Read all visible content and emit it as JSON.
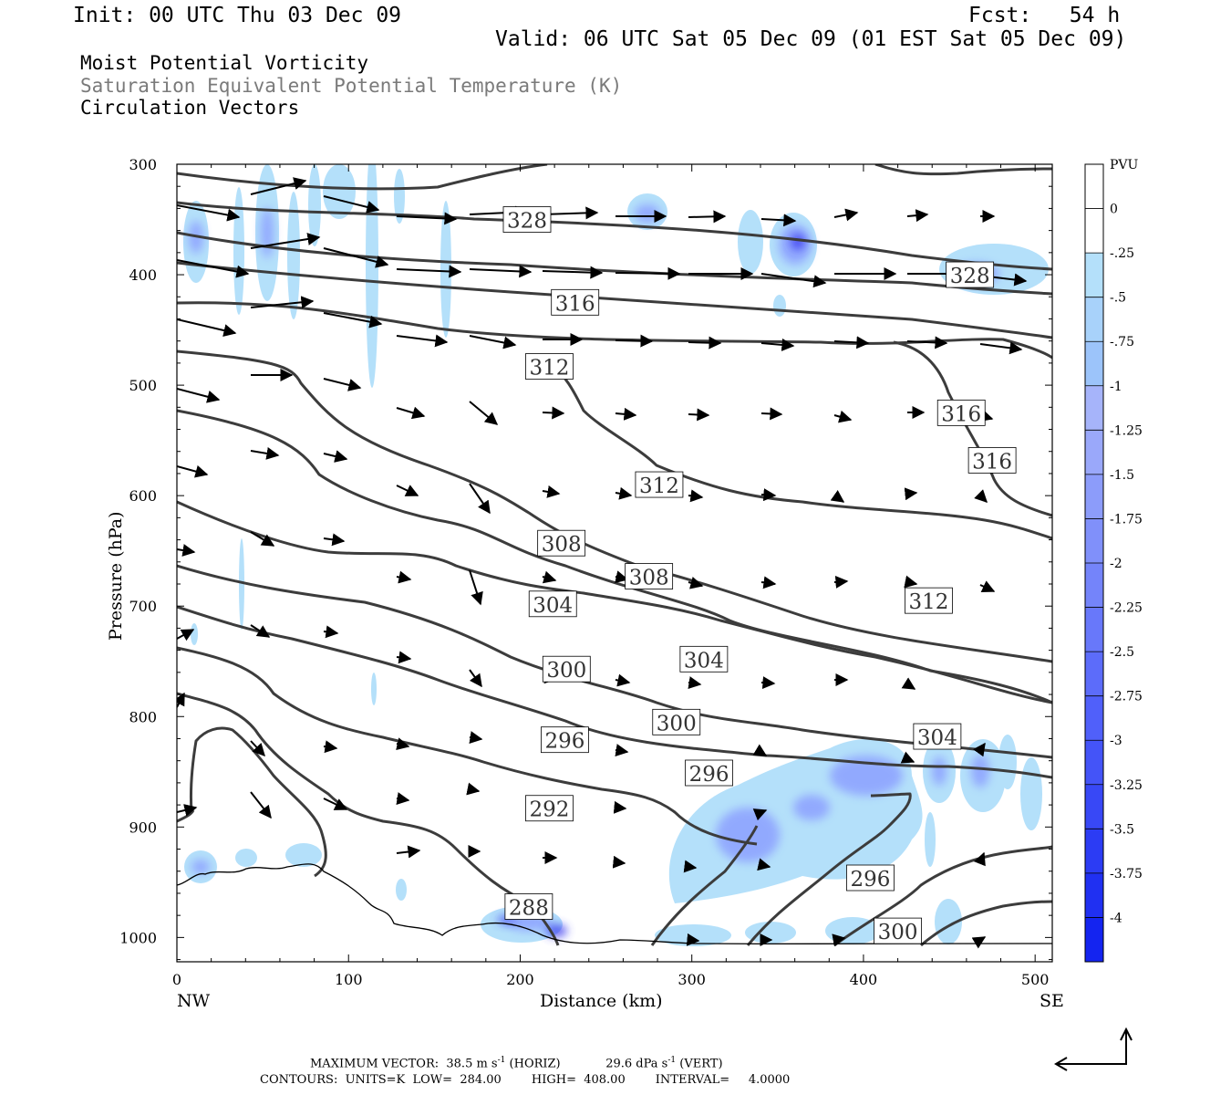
{
  "header": {
    "init": "Init: 00 UTC Thu 03 Dec 09",
    "fcst": "Fcst:   54 h",
    "valid": "Valid: 06 UTC Sat 05 Dec 09 (01 EST Sat 05 Dec 09)",
    "fields": [
      "Moist Potential Vorticity",
      "Saturation Equivalent Potential Temperature (K)",
      "Circulation Vectors"
    ]
  },
  "footer": {
    "max_vector_label": "MAXIMUM VECTOR:",
    "horiz": "38.5 m s",
    "horiz_unit": "(HORIZ)",
    "vert": "29.6 dPa s",
    "vert_unit": "(VERT)",
    "exp": "-1",
    "contours": "CONTOURS:  UNITS=K  LOW=  284.00        HIGH=  408.00        INTERVAL=     4.0000"
  },
  "colors": {
    "contour": "#3c3c3c",
    "pv_light": "#b4e0fa",
    "pv_mid": "#8ca0ff",
    "pv_dark": "#2828f0"
  },
  "chart_data": {
    "type": "contour",
    "xlabel": "Distance (km)",
    "ylabel": "Pressure (hPa)",
    "xlim": [
      0,
      510
    ],
    "ylim": [
      1022,
      300
    ],
    "x_ticks": [
      "0",
      "100",
      "200",
      "300",
      "400",
      "500"
    ],
    "x_tick_values": [
      0,
      100,
      200,
      300,
      400,
      500
    ],
    "y_ticks": [
      "300",
      "400",
      "500",
      "600",
      "700",
      "800",
      "900",
      "1000"
    ],
    "y_tick_values": [
      300,
      400,
      500,
      600,
      700,
      800,
      900,
      1000
    ],
    "x_end_labels": {
      "left": "NW",
      "right": "SE"
    },
    "colorbar": {
      "unit": "PVU",
      "labels": [
        "0",
        "-.25",
        "-.5",
        "-.75",
        "-1",
        "-1.25",
        "-1.5",
        "-1.75",
        "-2",
        "-2.25",
        "-2.5",
        "-2.75",
        "-3",
        "-3.25",
        "-3.5",
        "-3.75",
        "-4"
      ],
      "colors": [
        "#ffffff",
        "#b4e0fa",
        "#a8d2fa",
        "#9cc4fa",
        "#a6b4fa",
        "#9aa8fa",
        "#8c9cfa",
        "#8090fa",
        "#7484fa",
        "#6878fa",
        "#5c6cfa",
        "#5060fa",
        "#4454f8",
        "#3848f6",
        "#2c3cf4",
        "#2030f2",
        "#1424f0"
      ]
    },
    "contour_labels": [
      {
        "text": "328",
        "x": 204,
        "p": 350
      },
      {
        "text": "328",
        "x": 462,
        "p": 400
      },
      {
        "text": "316",
        "x": 232,
        "p": 425
      },
      {
        "text": "312",
        "x": 217,
        "p": 483
      },
      {
        "text": "316",
        "x": 457,
        "p": 525
      },
      {
        "text": "316",
        "x": 475,
        "p": 568
      },
      {
        "text": "312",
        "x": 281,
        "p": 590
      },
      {
        "text": "308",
        "x": 224,
        "p": 643
      },
      {
        "text": "308",
        "x": 275,
        "p": 673
      },
      {
        "text": "312",
        "x": 438,
        "p": 695
      },
      {
        "text": "304",
        "x": 219,
        "p": 698
      },
      {
        "text": "300",
        "x": 227,
        "p": 757
      },
      {
        "text": "304",
        "x": 307,
        "p": 748
      },
      {
        "text": "300",
        "x": 291,
        "p": 805
      },
      {
        "text": "304",
        "x": 443,
        "p": 818
      },
      {
        "text": "296",
        "x": 226,
        "p": 821
      },
      {
        "text": "296",
        "x": 310,
        "p": 851
      },
      {
        "text": "292",
        "x": 217,
        "p": 883
      },
      {
        "text": "296",
        "x": 404,
        "p": 946
      },
      {
        "text": "288",
        "x": 205,
        "p": 972
      },
      {
        "text": "300",
        "x": 420,
        "p": 994
      }
    ]
  }
}
